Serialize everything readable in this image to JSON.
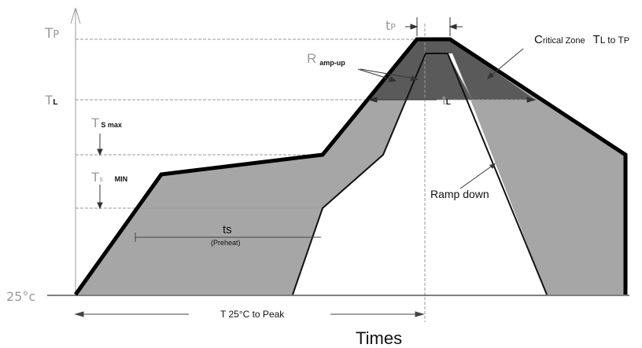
{
  "title": "Times",
  "colors": {
    "fill_zone": "#a6a6a6",
    "critical_zone": "#5a5a5a",
    "curve": "#000000",
    "guide": "#9a9a9a"
  },
  "labels": {
    "tp_main": "T",
    "tp_sub": "P",
    "tl_main": "T",
    "tl_sub": "L",
    "tsmax_main": "T",
    "tsmax_sub": "S max",
    "tsmin_main": "T",
    "tsmin_sub_s": "s",
    "tsmin_sub_min": "MIN",
    "t25": "25°c",
    "tp_duration_main": "t",
    "tp_duration_sub": "P",
    "tl_duration_main": "t",
    "tl_duration_sub": "L",
    "ramp_up_main": "R",
    "ramp_up_sub": "amp-up",
    "critical_cap": "C",
    "critical_rest": "ritical Zone",
    "critical_range": "T",
    "critical_range_l": "L to T",
    "critical_range_p": "P",
    "ts": "ts",
    "preheat": "(Preheat)",
    "ramp_down": "Ramp down",
    "t25_to_peak": "T 25°C to Peak"
  }
}
